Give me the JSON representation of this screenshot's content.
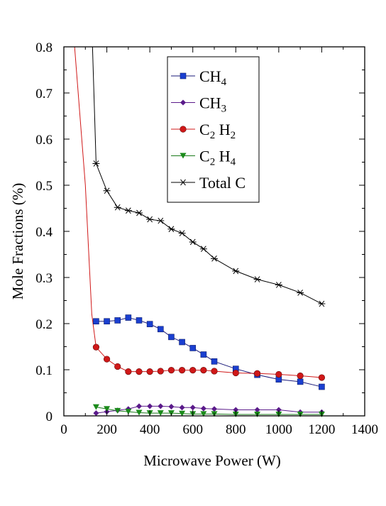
{
  "chart_data": {
    "type": "line",
    "xlabel": "Microwave Power (W)",
    "ylabel": "Mole Fractions (%)",
    "xlim": [
      0,
      1400
    ],
    "ylim": [
      0,
      0.8
    ],
    "x_ticks": [
      "0",
      "200",
      "400",
      "600",
      "800",
      "1000",
      "1200",
      "1400"
    ],
    "y_ticks": [
      "0",
      "0.1",
      "0.2",
      "0.3",
      "0.4",
      "0.5",
      "0.6",
      "0.7",
      "0.8"
    ],
    "grid": false,
    "legend_position": "top-right",
    "series": [
      {
        "name": "CH4",
        "label_main": "CH",
        "label_sub": "4",
        "color": "#1a3fd0",
        "marker": "square",
        "line_color": "#1a1a7a",
        "x": [
          150,
          200,
          250,
          300,
          350,
          400,
          450,
          500,
          550,
          600,
          650,
          700,
          800,
          900,
          1000,
          1100,
          1200
        ],
        "y": [
          0.205,
          0.205,
          0.207,
          0.213,
          0.207,
          0.199,
          0.188,
          0.171,
          0.16,
          0.147,
          0.133,
          0.118,
          0.102,
          0.089,
          0.079,
          0.074,
          0.063
        ]
      },
      {
        "name": "CH3",
        "label_main": "CH",
        "label_sub": "3",
        "color": "#5a1a8a",
        "marker": "diamond",
        "line_color": "#5a1a8a",
        "x": [
          150,
          200,
          250,
          300,
          350,
          400,
          450,
          500,
          550,
          600,
          650,
          700,
          800,
          900,
          1000,
          1100,
          1200
        ],
        "y": [
          0.006,
          0.009,
          0.012,
          0.015,
          0.021,
          0.021,
          0.021,
          0.02,
          0.018,
          0.018,
          0.016,
          0.015,
          0.013,
          0.013,
          0.013,
          0.008,
          0.008
        ]
      },
      {
        "name": "C2H2",
        "label_main": "C",
        "label_sub": "2",
        "label_tail": " H",
        "label_sub2": "2",
        "color": "#d01818",
        "marker": "circle",
        "line_color": "#d01818",
        "x": [
          0,
          50,
          100,
          130,
          150,
          200,
          250,
          300,
          350,
          400,
          450,
          500,
          550,
          600,
          650,
          700,
          800,
          900,
          1000,
          1100,
          1200
        ],
        "y": [
          1.2,
          0.8,
          0.5,
          0.22,
          0.149,
          0.123,
          0.107,
          0.096,
          0.096,
          0.096,
          0.097,
          0.099,
          0.099,
          0.099,
          0.099,
          0.097,
          0.093,
          0.092,
          0.09,
          0.087,
          0.083
        ]
      },
      {
        "name": "C2H4",
        "label_main": "C",
        "label_sub": "2",
        "label_tail": " H",
        "label_sub2": "4",
        "color": "#1a8a1a",
        "marker": "triangle-down",
        "line_color": "#1a7a1a",
        "x": [
          150,
          200,
          250,
          300,
          350,
          400,
          450,
          500,
          550,
          600,
          650,
          700,
          800,
          900,
          1000,
          1100,
          1200
        ],
        "y": [
          0.019,
          0.015,
          0.011,
          0.009,
          0.007,
          0.006,
          0.006,
          0.006,
          0.005,
          0.004,
          0.004,
          0.004,
          0.003,
          0.003,
          0.003,
          0.003,
          0.003
        ]
      },
      {
        "name": "Total C",
        "label_main": "Total C",
        "color": "#000000",
        "marker": "star",
        "line_color": "#000000",
        "x": [
          120,
          150,
          200,
          250,
          300,
          350,
          400,
          450,
          500,
          550,
          600,
          650,
          700,
          800,
          900,
          1000,
          1100,
          1200
        ],
        "y": [
          1.0,
          0.547,
          0.488,
          0.452,
          0.445,
          0.44,
          0.426,
          0.423,
          0.405,
          0.396,
          0.377,
          0.362,
          0.341,
          0.314,
          0.296,
          0.284,
          0.267,
          0.243
        ]
      }
    ]
  }
}
